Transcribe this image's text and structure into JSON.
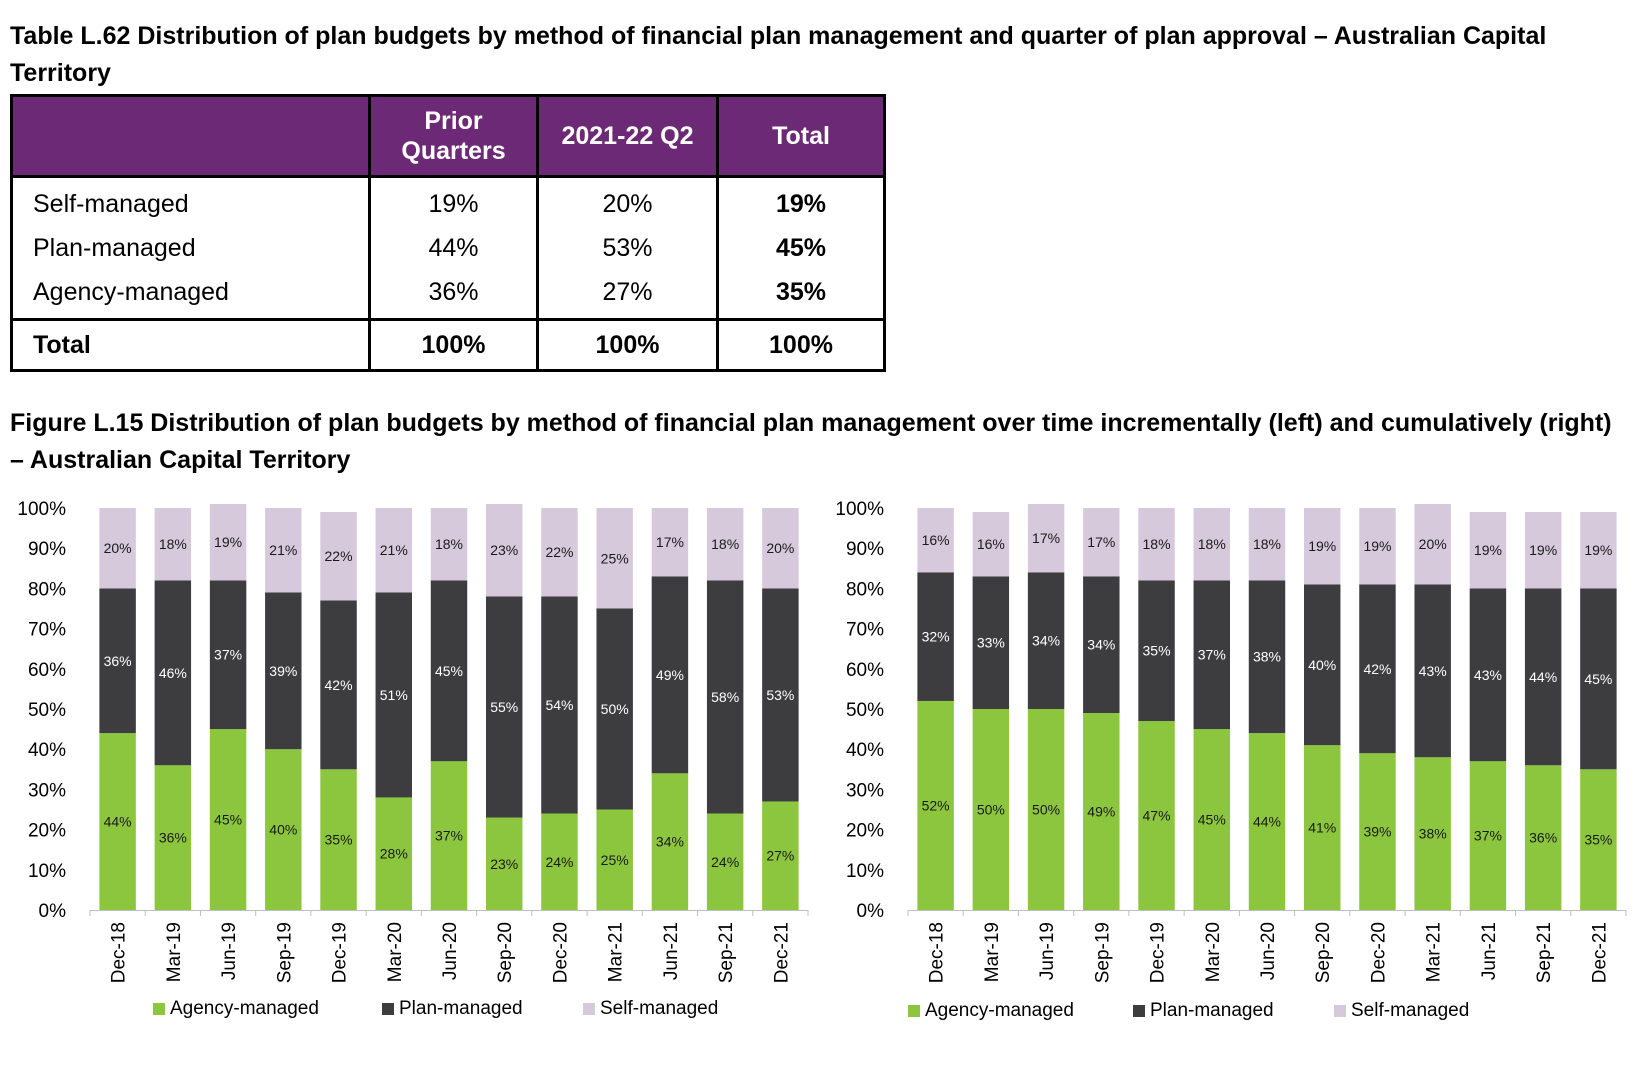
{
  "table": {
    "title": "Table L.62 Distribution of plan budgets by method of financial plan management and quarter of plan approval – Australian Capital Territory",
    "headers": [
      "",
      "Prior Quarters",
      "2021-22 Q2",
      "Total"
    ],
    "rows": [
      {
        "label": "Self-managed",
        "values": [
          "19%",
          "20%",
          "19%"
        ]
      },
      {
        "label": "Plan-managed",
        "values": [
          "44%",
          "53%",
          "45%"
        ]
      },
      {
        "label": "Agency-managed",
        "values": [
          "36%",
          "27%",
          "35%"
        ]
      }
    ],
    "total": {
      "label": "Total",
      "values": [
        "100%",
        "100%",
        "100%"
      ]
    }
  },
  "figure": {
    "title": "Figure L.15 Distribution of plan budgets by method of financial plan management over time incrementally (left) and cumulatively (right) – Australian Capital Territory"
  },
  "colors": {
    "header_bg": "#6c2a76",
    "agency": "#8cc63f",
    "plan": "#3d3d3f",
    "self": "#d6c9dc"
  },
  "chart_data": [
    {
      "type": "bar",
      "stacked": true,
      "categories": [
        "Dec-18",
        "Mar-19",
        "Jun-19",
        "Sep-19",
        "Dec-19",
        "Mar-20",
        "Jun-20",
        "Sep-20",
        "Dec-20",
        "Mar-21",
        "Jun-21",
        "Sep-21",
        "Dec-21"
      ],
      "series": [
        {
          "name": "Agency-managed",
          "values": [
            44,
            36,
            45,
            40,
            35,
            28,
            37,
            23,
            24,
            25,
            34,
            24,
            27
          ]
        },
        {
          "name": "Plan-managed",
          "values": [
            36,
            46,
            37,
            39,
            42,
            51,
            45,
            55,
            54,
            50,
            49,
            58,
            53
          ]
        },
        {
          "name": "Self-managed",
          "values": [
            20,
            18,
            19,
            21,
            22,
            21,
            18,
            23,
            22,
            25,
            17,
            18,
            20
          ]
        }
      ],
      "yticks": [
        "0%",
        "10%",
        "20%",
        "30%",
        "40%",
        "50%",
        "60%",
        "70%",
        "80%",
        "90%",
        "100%"
      ],
      "ylim": [
        0,
        100
      ],
      "legend": "bottom"
    },
    {
      "type": "bar",
      "stacked": true,
      "categories": [
        "Dec-18",
        "Mar-19",
        "Jun-19",
        "Sep-19",
        "Dec-19",
        "Mar-20",
        "Jun-20",
        "Sep-20",
        "Dec-20",
        "Mar-21",
        "Jun-21",
        "Sep-21",
        "Dec-21"
      ],
      "series": [
        {
          "name": "Agency-managed",
          "values": [
            52,
            50,
            50,
            49,
            47,
            45,
            44,
            41,
            39,
            38,
            37,
            36,
            35
          ]
        },
        {
          "name": "Plan-managed",
          "values": [
            32,
            33,
            34,
            34,
            35,
            37,
            38,
            40,
            42,
            43,
            43,
            44,
            45
          ]
        },
        {
          "name": "Self-managed",
          "values": [
            16,
            16,
            17,
            17,
            18,
            18,
            18,
            19,
            19,
            20,
            19,
            19,
            19
          ]
        }
      ],
      "yticks": [
        "0%",
        "10%",
        "20%",
        "30%",
        "40%",
        "50%",
        "60%",
        "70%",
        "80%",
        "90%",
        "100%"
      ],
      "ylim": [
        0,
        100
      ],
      "legend": "bottom"
    }
  ]
}
